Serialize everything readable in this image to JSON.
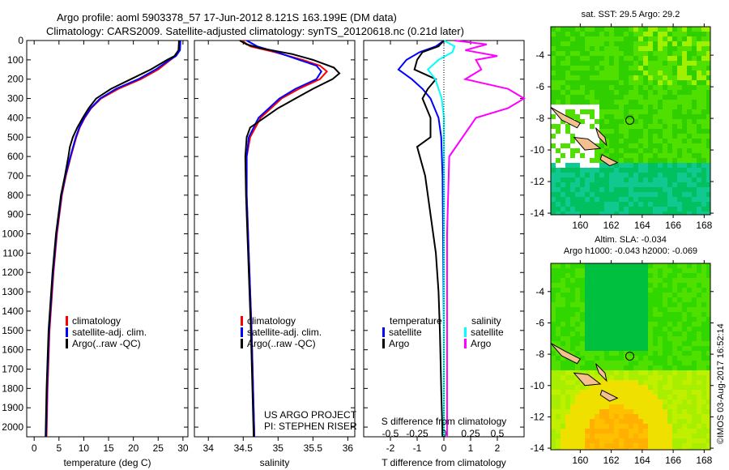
{
  "chart_data": {
    "type": "line",
    "title": [
      "Argo profile: aoml 5903378_57 17-Jun-2012 8.121S 163.199E (DM data)",
      "Climatology: CARS2009. Satellite-adjusted climatology: synTS_20120618.nc (0.21d later)"
    ],
    "ylabel": "depth",
    "ylim": [
      0,
      2050
    ],
    "depth_ticks": [
      0,
      100,
      200,
      300,
      400,
      500,
      600,
      700,
      800,
      900,
      1000,
      1100,
      1200,
      1300,
      1400,
      1500,
      1600,
      1700,
      1800,
      1900,
      2000
    ],
    "panels": [
      {
        "id": "temperature",
        "xlabel": "temperature (deg C)",
        "xlim": [
          -1.5,
          31
        ],
        "xticks": [
          0,
          5,
          10,
          15,
          20,
          25,
          30
        ],
        "legend": [
          "climatology",
          "satellite-adj. clim.",
          "Argo(..raw -QC)"
        ],
        "series": [
          {
            "name": "climatology",
            "color": "#ff0000",
            "depth": [
              0,
              50,
              80,
              100,
              150,
              200,
              250,
              300,
              350,
              400,
              450,
              500,
              600,
              700,
              800,
              1000,
              1200,
              1500,
              1800,
              2050
            ],
            "values": [
              29.3,
              29.2,
              28.5,
              27.5,
              25,
              21.5,
              17,
              13.5,
              11.5,
              10.2,
              9.2,
              8.5,
              7.4,
              6.4,
              5.6,
              4.6,
              3.9,
              3.1,
              2.7,
              2.5
            ]
          },
          {
            "name": "satellite-adj. clim.",
            "color": "#0000ff",
            "depth": [
              0,
              50,
              80,
              100,
              150,
              200,
              250,
              300,
              350,
              400,
              450,
              500,
              600,
              700,
              800,
              1000,
              1200,
              1500,
              1800,
              2050
            ],
            "values": [
              29.5,
              29.4,
              28.6,
              27.3,
              24.5,
              21,
              16.5,
              13.3,
              11.4,
              10.1,
              9.1,
              8.4,
              7.3,
              6.3,
              5.5,
              4.5,
              3.8,
              3.0,
              2.6,
              2.4
            ]
          },
          {
            "name": "Argo(..raw -QC)",
            "color": "#000000",
            "depth": [
              0,
              50,
              80,
              100,
              150,
              200,
              250,
              300,
              350,
              400,
              450,
              500,
              550,
              600,
              700,
              800,
              1000,
              1200,
              1500,
              1800,
              2050
            ],
            "values": [
              29.2,
              29.1,
              28.3,
              26.8,
              23.5,
              19.5,
              15.5,
              12.5,
              11,
              9.8,
              8.7,
              7.8,
              7.2,
              6.9,
              6.2,
              5.4,
              4.4,
              3.7,
              2.9,
              2.5,
              2.3
            ]
          }
        ]
      },
      {
        "id": "salinity",
        "xlabel": "salinity",
        "xlim": [
          33.8,
          36.1
        ],
        "xticks": [
          34,
          34.5,
          35,
          35.5,
          36
        ],
        "legend": [
          "climatology",
          "satellite-adj. clim.",
          "Argo(..raw -QC)"
        ],
        "series": [
          {
            "name": "climatology",
            "color": "#ff0000",
            "depth": [
              0,
              30,
              60,
              100,
              130,
              160,
              200,
              250,
              300,
              400,
              500,
              600,
              800,
              1000,
              1500,
              2050
            ],
            "values": [
              34.48,
              34.6,
              34.95,
              35.35,
              35.6,
              35.7,
              35.6,
              35.3,
              35.05,
              34.75,
              34.6,
              34.55,
              34.55,
              34.57,
              34.62,
              34.66
            ]
          },
          {
            "name": "satellite-adj. clim.",
            "color": "#0000ff",
            "depth": [
              0,
              30,
              60,
              100,
              130,
              160,
              200,
              250,
              300,
              400,
              500,
              600,
              800,
              1000,
              1500,
              2050
            ],
            "values": [
              34.55,
              34.7,
              34.98,
              35.3,
              35.55,
              35.62,
              35.55,
              35.25,
              35.02,
              34.72,
              34.58,
              34.55,
              34.55,
              34.57,
              34.62,
              34.66
            ]
          },
          {
            "name": "Argo(..raw -QC)",
            "color": "#000000",
            "depth": [
              0,
              20,
              40,
              70,
              100,
              140,
              170,
              200,
              250,
              300,
              350,
              400,
              450,
              500,
              600,
              800,
              1000,
              1500,
              2050
            ],
            "values": [
              34.45,
              34.55,
              34.75,
              35.2,
              35.5,
              35.8,
              35.88,
              35.78,
              35.5,
              35.25,
              35.0,
              34.8,
              34.6,
              34.55,
              34.53,
              34.54,
              34.56,
              34.61,
              34.65
            ]
          }
        ]
      },
      {
        "id": "difference",
        "xlabel": "T difference from climatology",
        "xlim": [
          -3,
          3
        ],
        "xticks": [
          -2,
          -1,
          0,
          1,
          2
        ],
        "x2label": "S difference from climatology",
        "x2ticks": [
          "-0.5",
          "-0.25",
          "0",
          "0.25",
          "0.5"
        ],
        "legend_headers": [
          "temperature",
          "salinity"
        ],
        "legend": [
          "satellite",
          "Argo",
          "satellite",
          "Argo"
        ],
        "series": [
          {
            "name": "T satellite",
            "color": "#0000ff",
            "depth": [
              0,
              30,
              60,
              100,
              150,
              200,
              250,
              300,
              400,
              500,
              700,
              1000,
              1500,
              2050
            ],
            "values": [
              0,
              -0.3,
              -0.9,
              -1.4,
              -1.7,
              -1.2,
              -0.8,
              -0.5,
              -0.2,
              -0.1,
              -0.05,
              -0.03,
              0,
              0
            ]
          },
          {
            "name": "T Argo",
            "color": "#000000",
            "depth": [
              0,
              30,
              60,
              100,
              150,
              200,
              250,
              300,
              400,
              500,
              550,
              700,
              900,
              1100,
              1300,
              1500,
              1800,
              2050
            ],
            "values": [
              0,
              -0.2,
              -0.8,
              -1.0,
              -1.1,
              -0.3,
              -0.6,
              -0.8,
              -0.5,
              -0.5,
              -1.0,
              -0.7,
              -0.5,
              -0.3,
              -0.2,
              -0.15,
              -0.1,
              -0.05
            ]
          },
          {
            "name": "S satellite",
            "color": "#00ffff",
            "depth": [
              0,
              30,
              60,
              100,
              150,
              200,
              250,
              300,
              400,
              600,
              1000,
              1500,
              2050
            ],
            "values": [
              0,
              0.1,
              0.08,
              -0.05,
              -0.15,
              -0.08,
              -0.05,
              -0.02,
              0,
              0,
              0,
              0,
              0
            ]
          },
          {
            "name": "S Argo",
            "color": "#ff00ff",
            "depth": [
              0,
              20,
              50,
              80,
              100,
              150,
              200,
              250,
              300,
              350,
              400,
              600,
              1000,
              1500,
              2050
            ],
            "values": [
              0.1,
              0.4,
              0.2,
              0.5,
              0.3,
              0.35,
              0.2,
              0.6,
              0.75,
              0.6,
              0.3,
              0.05,
              0.03,
              0.03,
              0.03
            ]
          }
        ]
      }
    ],
    "maps": [
      {
        "id": "sst",
        "title": [
          "sat. SST: 29.5 Argo: 29.2"
        ],
        "xlim": [
          158.1,
          168.4
        ],
        "ylim": [
          -14.1,
          -2.2
        ],
        "xticks": [
          160,
          162,
          164,
          166,
          168
        ],
        "yticks": [
          -4,
          -6,
          -8,
          -10,
          -12,
          -14
        ],
        "argo_position": [
          163.199,
          -8.121
        ]
      },
      {
        "id": "sla",
        "title": [
          "Altim. SLA: -0.034",
          "Argo h1000: -0.043 h2000: -0.069"
        ],
        "xlim": [
          158.1,
          168.4
        ],
        "ylim": [
          -14.1,
          -2.2
        ],
        "xticks": [
          160,
          162,
          164,
          166,
          168
        ],
        "yticks": [
          -4,
          -6,
          -8,
          -10,
          -12,
          -14
        ],
        "argo_position": [
          163.199,
          -8.121
        ]
      }
    ],
    "annotations": {
      "project": "US ARGO PROJECT",
      "pi": "PI: STEPHEN RISER",
      "credit": "©IMOS 03-Aug-2017 16:52:14"
    }
  }
}
